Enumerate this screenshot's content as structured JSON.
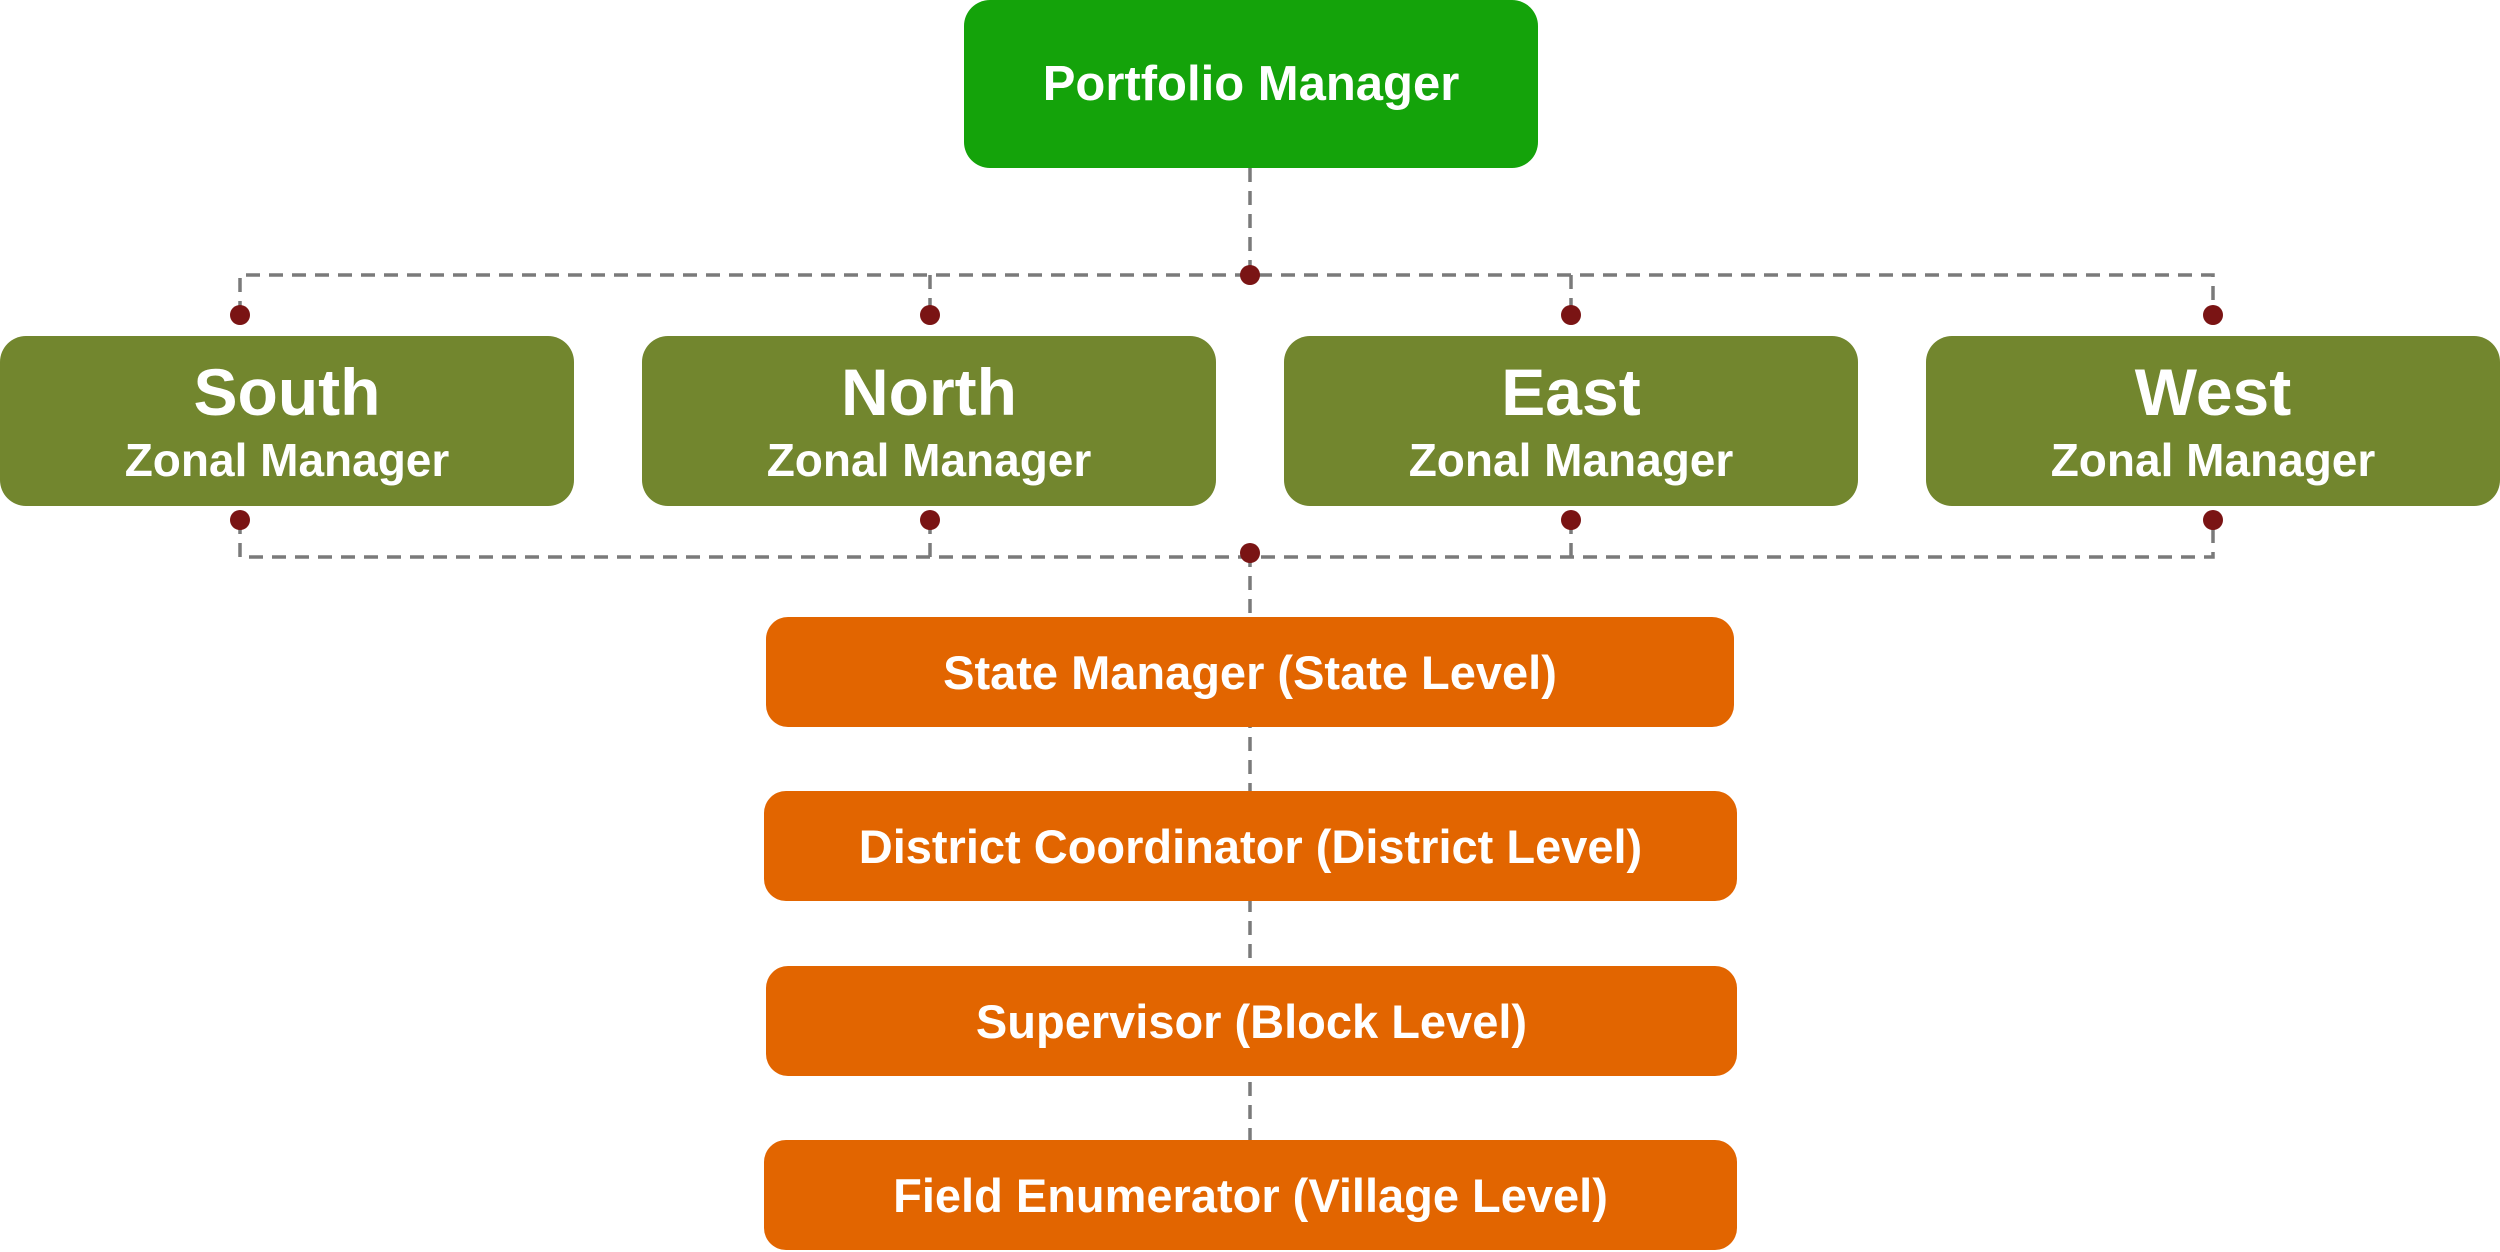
{
  "colors": {
    "top": "#14a30a",
    "zone": "#72862e",
    "level": "#e26500",
    "connector_line": "#7a7a7a",
    "connector_dot": "#7a1414"
  },
  "top": {
    "label": "Portfolio Manager"
  },
  "zones": [
    {
      "name": "South",
      "role": "Zonal Manager"
    },
    {
      "name": "North",
      "role": "Zonal Manager"
    },
    {
      "name": "East",
      "role": "Zonal Manager"
    },
    {
      "name": "West",
      "role": "Zonal Manager"
    }
  ],
  "levels": [
    {
      "label": "State Manager (State Level)"
    },
    {
      "label": "District Coordinator (District Level)"
    },
    {
      "label": "Supervisor (Block Level)"
    },
    {
      "label": "Field Enumerator (Village Level)"
    }
  ]
}
